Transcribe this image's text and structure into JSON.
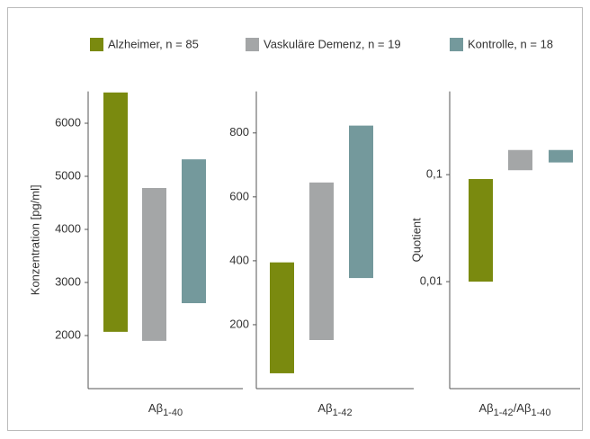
{
  "chart_data": [
    {
      "type": "floating-bar",
      "ylabel": "Konzentration [pg/ml]",
      "xlabel": [
        {
          "text": "Aβ"
        },
        {
          "sub": "1-40"
        }
      ],
      "series": [
        {
          "name": "Alzheimer, n = 85",
          "color": "#7a8a0f",
          "values": [
            2070,
            6580
          ]
        },
        {
          "name": "Vaskuläre Demenz, n = 19",
          "color": "#a4a6a7",
          "values": [
            1900,
            4780
          ]
        },
        {
          "name": "Kontrolle, n = 18",
          "color": "#74999c",
          "values": [
            2610,
            5320
          ]
        }
      ],
      "ylim": [
        1000,
        6600
      ],
      "yticks": [
        2000,
        3000,
        4000,
        5000,
        6000
      ]
    },
    {
      "type": "floating-bar",
      "xlabel": [
        {
          "text": "Aβ"
        },
        {
          "sub": "1-42"
        }
      ],
      "series": [
        {
          "values": [
            48,
            395
          ]
        },
        {
          "values": [
            152,
            645
          ]
        },
        {
          "values": [
            346,
            823
          ]
        }
      ],
      "ylim": [
        0,
        930
      ],
      "yticks": [
        200,
        400,
        600,
        800
      ]
    },
    {
      "type": "floating-bar",
      "ylabel": "Quotient",
      "log": true,
      "xlabel": [
        {
          "text": "Aβ"
        },
        {
          "sub": "1-42"
        },
        {
          "text": "/Aβ"
        },
        {
          "sub": "1-40"
        }
      ],
      "series": [
        {
          "values": [
            0.01,
            0.091
          ]
        },
        {
          "values": [
            0.11,
            0.17
          ]
        },
        {
          "values": [
            0.13,
            0.17
          ]
        }
      ],
      "ylim": [
        0.001,
        0.6
      ],
      "yticks": [
        {
          "value": 0.01,
          "label": "0,01"
        },
        {
          "value": 0.1,
          "label": "0,1"
        }
      ]
    }
  ]
}
